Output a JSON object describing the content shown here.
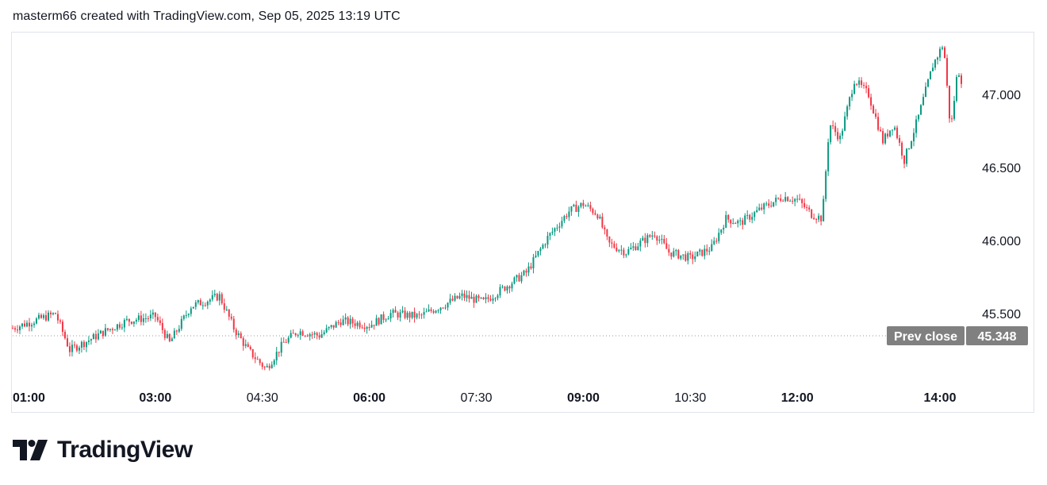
{
  "header": {
    "attribution": "masterm66 created with TradingView.com, Sep 05, 2025 13:19 UTC"
  },
  "brand": {
    "name": "TradingView"
  },
  "colors": {
    "up": "#089981",
    "down": "#f23645",
    "prev_close_label_bg": "#808080",
    "grid": "#e0e3eb",
    "text": "#131722"
  },
  "chart_data": {
    "type": "candlestick",
    "y_axis": {
      "ticks": [
        "47.000",
        "46.500",
        "46.000",
        "45.500"
      ],
      "tick_values": [
        47.0,
        46.5,
        46.0,
        45.5
      ],
      "range": [
        45.05,
        47.45
      ],
      "position": "right"
    },
    "x_axis": {
      "ticks": [
        {
          "label": "01:00",
          "bold": true
        },
        {
          "label": "03:00",
          "bold": true
        },
        {
          "label": "04:30",
          "bold": false
        },
        {
          "label": "06:00",
          "bold": true
        },
        {
          "label": "07:30",
          "bold": false
        },
        {
          "label": "09:00",
          "bold": true
        },
        {
          "label": "10:30",
          "bold": false
        },
        {
          "label": "12:00",
          "bold": true
        },
        {
          "label": "14:00",
          "bold": true
        }
      ],
      "tick_hours": [
        1.0,
        3.0,
        4.5,
        6.0,
        7.5,
        9.0,
        10.5,
        12.0,
        14.0
      ]
    },
    "prev_close": {
      "label": "Prev close",
      "value": "45.348",
      "numeric": 45.348
    },
    "series_path": [
      [
        1.0,
        45.4
      ],
      [
        1.3,
        45.45
      ],
      [
        1.6,
        45.5
      ],
      [
        1.8,
        45.25
      ],
      [
        2.0,
        45.3
      ],
      [
        2.3,
        45.38
      ],
      [
        2.6,
        45.45
      ],
      [
        3.0,
        45.48
      ],
      [
        3.2,
        45.3
      ],
      [
        3.5,
        45.55
      ],
      [
        3.9,
        45.62
      ],
      [
        4.1,
        45.4
      ],
      [
        4.3,
        45.25
      ],
      [
        4.55,
        45.12
      ],
      [
        4.8,
        45.3
      ],
      [
        5.0,
        45.38
      ],
      [
        5.3,
        45.35
      ],
      [
        5.6,
        45.45
      ],
      [
        6.0,
        45.42
      ],
      [
        6.3,
        45.5
      ],
      [
        6.7,
        45.48
      ],
      [
        7.0,
        45.55
      ],
      [
        7.3,
        45.62
      ],
      [
        7.6,
        45.58
      ],
      [
        7.9,
        45.68
      ],
      [
        8.2,
        45.78
      ],
      [
        8.5,
        46.02
      ],
      [
        8.8,
        46.2
      ],
      [
        9.0,
        46.25
      ],
      [
        9.2,
        46.18
      ],
      [
        9.35,
        45.98
      ],
      [
        9.6,
        45.92
      ],
      [
        10.0,
        46.05
      ],
      [
        10.2,
        45.92
      ],
      [
        10.5,
        45.88
      ],
      [
        10.8,
        45.95
      ],
      [
        11.0,
        46.15
      ],
      [
        11.2,
        46.12
      ],
      [
        11.5,
        46.22
      ],
      [
        11.8,
        46.3
      ],
      [
        12.0,
        46.28
      ],
      [
        12.2,
        46.18
      ],
      [
        12.35,
        46.15
      ],
      [
        12.45,
        46.8
      ],
      [
        12.6,
        46.7
      ],
      [
        12.8,
        47.1
      ],
      [
        13.0,
        47.0
      ],
      [
        13.2,
        46.68
      ],
      [
        13.35,
        46.8
      ],
      [
        13.5,
        46.55
      ],
      [
        13.7,
        46.85
      ],
      [
        13.9,
        47.2
      ],
      [
        14.05,
        47.35
      ],
      [
        14.15,
        46.75
      ],
      [
        14.25,
        47.18
      ],
      [
        14.3,
        47.1
      ]
    ]
  }
}
